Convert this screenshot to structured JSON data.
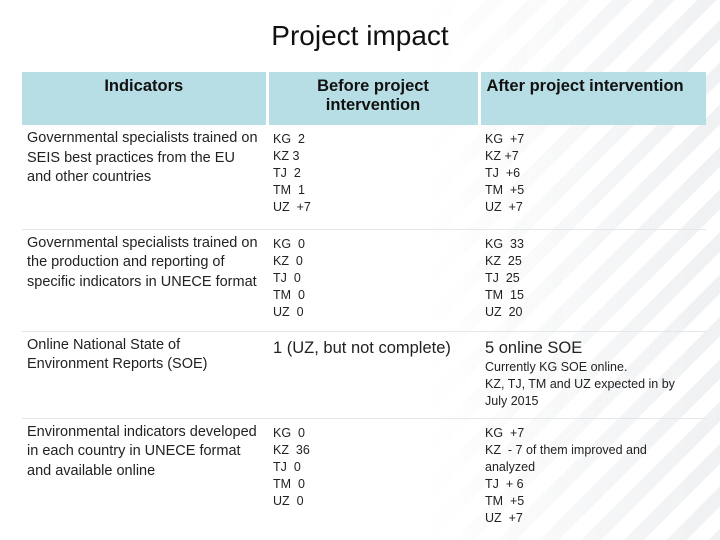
{
  "title": "Project impact",
  "headers": [
    "Indicators",
    "Before project intervention",
    "After project intervention"
  ],
  "rows": [
    {
      "indicator": "Governmental specialists trained on SEIS best practices from the EU and other countries",
      "before": [
        "KG  2",
        "KZ 3",
        "TJ  2",
        "TM  1",
        "UZ  +7"
      ],
      "after": [
        "KG  +7",
        "KZ +7",
        "TJ  +6",
        "TM  +5",
        "UZ  +7"
      ]
    },
    {
      "indicator": "Governmental specialists trained on the production and reporting of specific indicators in UNECE format",
      "before": [
        "KG  0",
        "KZ  0",
        "TJ  0",
        "TM  0",
        "UZ  0"
      ],
      "after": [
        "KG  33",
        "KZ  25",
        "TJ  25",
        "TM  15",
        "UZ  20"
      ]
    },
    {
      "indicator": "Online National State of Environment Reports (SOE)",
      "before_big": "1 (UZ, but not complete)",
      "after_big": "5 online SOE",
      "after": [
        "Currently KG SOE online.",
        "KZ, TJ, TM and UZ expected in by",
        "July 2015"
      ]
    },
    {
      "indicator": "Environmental indicators developed in each country in UNECE format and available online",
      "before": [
        "KG  0",
        "KZ  36",
        "TJ  0",
        "TM  0",
        "UZ  0"
      ],
      "after": [
        "KG  +7",
        "KZ  - 7 of them improved and",
        "analyzed",
        "TJ  + 6",
        "TM  +5",
        "UZ  +7"
      ]
    }
  ]
}
